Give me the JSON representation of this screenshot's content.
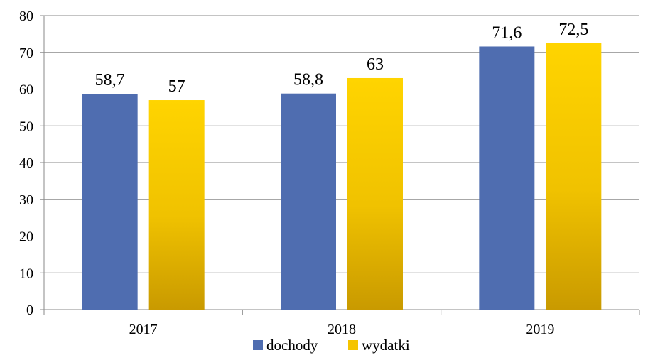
{
  "chart_data": {
    "type": "bar",
    "title": "",
    "xlabel": "",
    "ylabel": "",
    "categories": [
      "2017",
      "2018",
      "2019"
    ],
    "ylim": [
      0,
      80
    ],
    "yticks": [
      0,
      10,
      20,
      30,
      40,
      50,
      60,
      70,
      80
    ],
    "grid": true,
    "legend_position": "bottom",
    "series": [
      {
        "name": "dochody",
        "values": [
          58.7,
          58.8,
          71.6
        ],
        "labels": [
          "58,7",
          "58,8",
          "71,6"
        ],
        "color": "#4f6db0"
      },
      {
        "name": "wydatki",
        "values": [
          57,
          63,
          72.5
        ],
        "labels": [
          "57",
          "63",
          "72,5"
        ],
        "color": "#f5c400"
      }
    ]
  }
}
